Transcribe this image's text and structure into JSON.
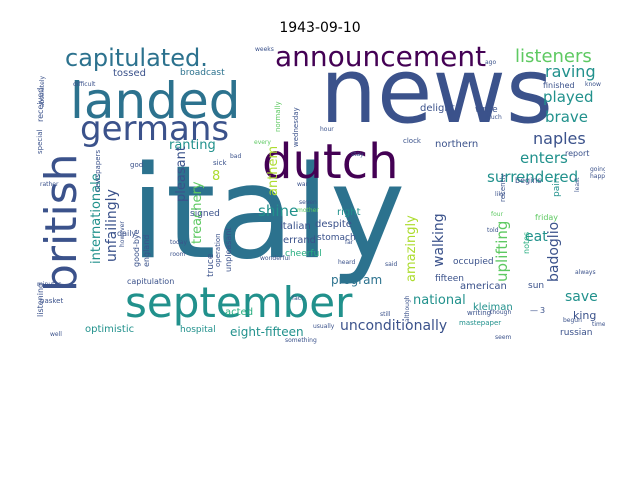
{
  "title": "1943-09-10",
  "palette": [
    "#440154",
    "#3b528b",
    "#2c728e",
    "#21918c",
    "#28ae80",
    "#5ec962",
    "#addc30",
    "#fde725"
  ],
  "words": [
    {
      "text": "italy",
      "color": "#2c728e"
    },
    {
      "text": "news",
      "color": "#3b528b"
    },
    {
      "text": "september",
      "color": "#21918c"
    },
    {
      "text": "landed",
      "color": "#2c728e"
    },
    {
      "text": "dutch",
      "color": "#440154"
    },
    {
      "text": "british",
      "color": "#3b528b"
    },
    {
      "text": "germans",
      "color": "#3b528b"
    },
    {
      "text": "announcement",
      "color": "#440154"
    },
    {
      "text": "capitulated.",
      "color": "#2c728e"
    },
    {
      "text": "listeners",
      "color": "#5ec962"
    },
    {
      "text": "raving",
      "color": "#21918c"
    },
    {
      "text": "played",
      "color": "#21918c"
    },
    {
      "text": "brave",
      "color": "#21918c"
    },
    {
      "text": "naples",
      "color": "#3b528b"
    },
    {
      "text": "enters",
      "color": "#21918c"
    },
    {
      "text": "surrendered",
      "color": "#21918c"
    },
    {
      "text": "eat",
      "color": "#21918c"
    },
    {
      "text": "badoglio",
      "color": "#3b528b"
    },
    {
      "text": "uplifting",
      "color": "#5ec962"
    },
    {
      "text": "walking",
      "color": "#3b528b"
    },
    {
      "text": "amazingly",
      "color": "#addc30"
    },
    {
      "text": "anthem",
      "color": "#addc30"
    },
    {
      "text": "ranting",
      "color": "#21918c"
    },
    {
      "text": "pleasant",
      "color": "#3b528b"
    },
    {
      "text": "treachery",
      "color": "#5ec962"
    },
    {
      "text": "shine",
      "color": "#21918c"
    },
    {
      "text": "internationale",
      "color": "#21918c"
    },
    {
      "text": "unfailingly",
      "color": "#3b528b"
    },
    {
      "text": "unconditionally",
      "color": "#3b528b"
    },
    {
      "text": "national",
      "color": "#21918c"
    },
    {
      "text": "save",
      "color": "#21918c"
    },
    {
      "text": "program",
      "color": "#2c728e"
    },
    {
      "text": "eight-fifteen",
      "color": "#21918c"
    },
    {
      "text": "optimistic",
      "color": "#21918c"
    },
    {
      "text": "acted",
      "color": "#28ae80"
    },
    {
      "text": "king",
      "color": "#3b528b"
    },
    {
      "text": "american",
      "color": "#3b528b"
    },
    {
      "text": "tossed",
      "color": "#3b528b"
    },
    {
      "text": "broadcast",
      "color": "#2c728e"
    },
    {
      "text": "signed",
      "color": "#3b528b"
    },
    {
      "text": "truce",
      "color": "#3b528b"
    },
    {
      "text": "errand",
      "color": "#3b528b"
    },
    {
      "text": "italian",
      "color": "#3b528b"
    },
    {
      "text": "cheerful",
      "color": "#28ae80"
    },
    {
      "text": "despite",
      "color": "#3b528b"
    },
    {
      "text": "northern",
      "color": "#3b528b"
    },
    {
      "text": "begins",
      "color": "#3b528b"
    },
    {
      "text": "right",
      "color": "#21918c"
    },
    {
      "text": "stomach",
      "color": "#3b528b"
    },
    {
      "text": "fifteen",
      "color": "#3b528b"
    },
    {
      "text": "occupied",
      "color": "#3b528b"
    },
    {
      "text": "kleiman",
      "color": "#21918c"
    },
    {
      "text": "sun",
      "color": "#3b528b"
    },
    {
      "text": "notes",
      "color": "#28ae80"
    },
    {
      "text": "friday",
      "color": "#5ec962"
    },
    {
      "text": "report",
      "color": "#3b528b"
    },
    {
      "text": "pain",
      "color": "#21918c"
    },
    {
      "text": "russian",
      "color": "#3b528b"
    },
    {
      "text": "delight",
      "color": "#3b528b"
    },
    {
      "text": "write",
      "color": "#3b528b"
    },
    {
      "text": "finished",
      "color": "#3b528b"
    },
    {
      "text": "capitulation",
      "color": "#3b528b"
    },
    {
      "text": "hospital",
      "color": "#21918c"
    },
    {
      "text": "daily",
      "color": "#3b528b"
    },
    {
      "text": "good-bye",
      "color": "#3b528b"
    },
    {
      "text": "england",
      "color": "#3b528b"
    },
    {
      "text": "unpleasant",
      "color": "#3b528b"
    },
    {
      "text": "operation",
      "color": "#3b528b"
    },
    {
      "text": "newspapers",
      "color": "#3b528b"
    },
    {
      "text": "received",
      "color": "#3b528b"
    },
    {
      "text": "special",
      "color": "#3b528b"
    },
    {
      "text": "basket",
      "color": "#3b528b"
    },
    {
      "text": "listening",
      "color": "#3b528b"
    },
    {
      "text": "wednesday",
      "color": "#3b528b"
    },
    {
      "text": "normally",
      "color": "#5ec962"
    },
    {
      "text": "clock",
      "color": "#3b528b"
    },
    {
      "text": "recently",
      "color": "#3b528b"
    },
    {
      "text": "writing",
      "color": "#3b528b"
    },
    {
      "text": "mastepaper",
      "color": "#21918c"
    },
    {
      "text": "usually",
      "color": "#3b528b"
    },
    {
      "text": "although",
      "color": "#3b528b"
    },
    {
      "text": "though",
      "color": "#3b528b"
    },
    {
      "text": "minutes",
      "color": "#3b528b"
    },
    {
      "text": "however",
      "color": "#3b528b"
    },
    {
      "text": "rather",
      "color": "#3b528b"
    },
    {
      "text": "today",
      "color": "#3b528b"
    },
    {
      "text": "room",
      "color": "#3b528b"
    },
    {
      "text": "god",
      "color": "#3b528b"
    },
    {
      "text": "sick",
      "color": "#3b528b"
    },
    {
      "text": "bad",
      "color": "#3b528b"
    },
    {
      "text": "hour",
      "color": "#3b528b"
    },
    {
      "text": "much",
      "color": "#3b528b"
    },
    {
      "text": "still",
      "color": "#3b528b"
    },
    {
      "text": "said",
      "color": "#3b528b"
    },
    {
      "text": "heard",
      "color": "#3b528b"
    },
    {
      "text": "told",
      "color": "#3b528b"
    },
    {
      "text": "far",
      "color": "#3b528b"
    },
    {
      "text": "fact",
      "color": "#3b528b"
    },
    {
      "text": "seven",
      "color": "#3b528b"
    },
    {
      "text": "mother",
      "color": "#5ec962"
    },
    {
      "text": "wonderful",
      "color": "#3b528b"
    },
    {
      "text": "something",
      "color": "#3b528b"
    },
    {
      "text": "four",
      "color": "#5ec962"
    },
    {
      "text": "like",
      "color": "#3b528b"
    },
    {
      "text": "always",
      "color": "#3b528b"
    },
    {
      "text": "going",
      "color": "#3b528b"
    },
    {
      "text": "happened",
      "color": "#3b528b"
    },
    {
      "text": "least",
      "color": "#3b528b"
    },
    {
      "text": "time",
      "color": "#3b528b"
    },
    {
      "text": "know",
      "color": "#3b528b"
    },
    {
      "text": "difficult",
      "color": "#3b528b"
    },
    {
      "text": "absolutely",
      "color": "#3b528b"
    },
    {
      "text": "ago",
      "color": "#3b528b"
    },
    {
      "text": "weeks",
      "color": "#3b528b"
    },
    {
      "text": "seem",
      "color": "#3b528b"
    },
    {
      "text": "begun",
      "color": "#3b528b"
    },
    {
      "text": "well",
      "color": "#3b528b"
    },
    {
      "text": "every",
      "color": "#5ec962"
    },
    {
      "text": "war",
      "color": "#3b528b"
    },
    {
      "text": "stay",
      "color": "#3b528b"
    },
    {
      "text": "8",
      "color": "#addc30"
    },
    {
      "text": "3",
      "color": "#3b528b"
    },
    {
      "text": "—",
      "color": "#3b528b"
    }
  ]
}
